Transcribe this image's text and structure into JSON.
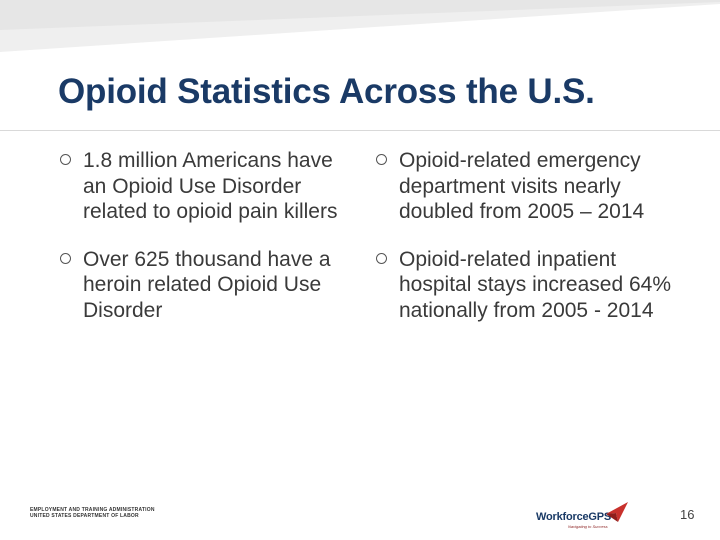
{
  "slide": {
    "title": "Opioid Statistics Across the U.S.",
    "page_number": "16"
  },
  "left_bullets": [
    {
      "text": "1.8 million Americans have an Opioid Use Disorder related to opioid pain killers"
    },
    {
      "text": "Over 625 thousand have a heroin related Opioid Use Disorder"
    }
  ],
  "right_bullets": [
    {
      "text": "Opioid-related emergency department visits nearly doubled from 2005 – 2014"
    },
    {
      "text": "Opioid-related inpatient hospital stays increased 64% nationally from 2005 - 2014"
    }
  ],
  "footer": {
    "agency_line1": "EMPLOYMENT AND TRAINING ADMINISTRATION",
    "agency_line2": "UNITED STATES DEPARTMENT OF LABOR",
    "logo_word": "WorkforceGPS",
    "logo_tagline": "Navigating to Success"
  },
  "colors": {
    "title": "#1a3a66",
    "body_text": "#3a3a3a",
    "band": "#eeeeee",
    "logo_red": "#c8312c"
  },
  "icons": {
    "bullet": "hollow-circle-bullet-icon",
    "logo_mark": "red-arrow-logo-icon"
  }
}
